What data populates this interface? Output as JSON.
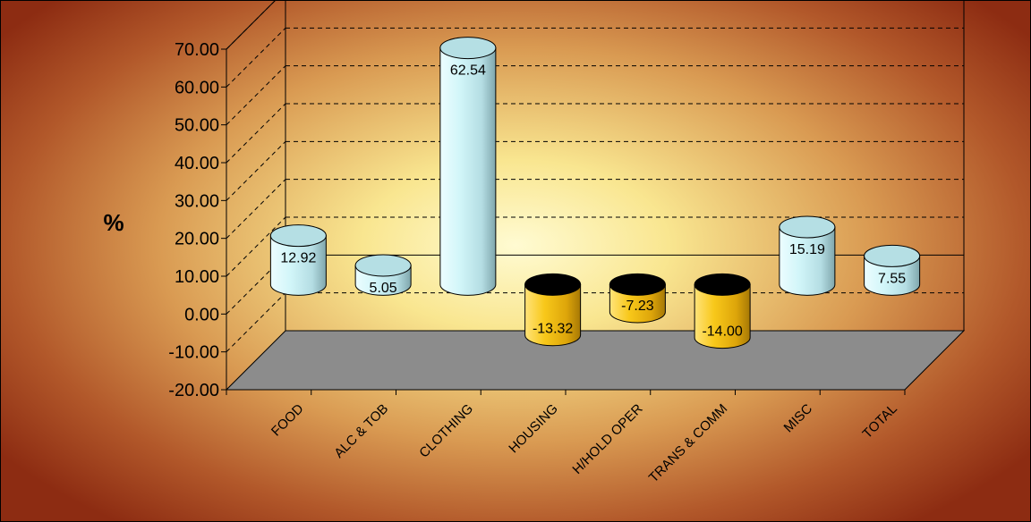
{
  "chart_data": {
    "type": "bar",
    "style": "3d-cylinder",
    "title": "",
    "xlabel": "",
    "ylabel": "%",
    "ylim": [
      -20,
      70
    ],
    "ytick_step": 10,
    "ytick_labels": [
      "-20.00",
      "-10.00",
      "0.00",
      "10.00",
      "20.00",
      "30.00",
      "40.00",
      "50.00",
      "60.00",
      "70.00"
    ],
    "grid": true,
    "legend": "none",
    "categories": [
      "FOOD",
      "ALC & TOB",
      "CLOTHING",
      "HOUSING",
      "H/HOLD OPER",
      "TRANS & COMM",
      "MISC",
      "TOTAL"
    ],
    "values": [
      12.92,
      5.05,
      62.54,
      -13.32,
      -7.23,
      -14.0,
      15.19,
      7.55
    ],
    "value_labels": [
      "12.92",
      "5.05",
      "62.54",
      "-13.32",
      "-7.23",
      "-14.00",
      "15.19",
      "7.55"
    ],
    "colors": {
      "positive_bar": "#c6f2f5",
      "negative_bar": "#f6c20a",
      "floor": "#8c8c8c",
      "background_center": "#fffbd2",
      "background_edge": "#8d2c12"
    }
  }
}
